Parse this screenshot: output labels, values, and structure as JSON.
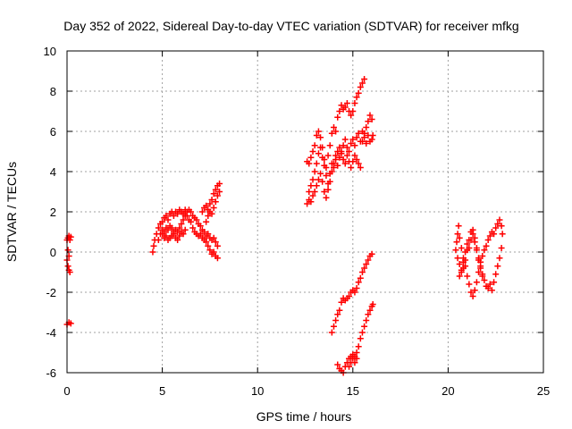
{
  "chart_data": {
    "type": "scatter",
    "title": "Day 352 of 2022, Sidereal Day-to-day VTEC variation (SDTVAR) for receiver mfkg",
    "xlabel": "GPS time / hours",
    "ylabel": "SDTVAR / TECUs",
    "xlim": [
      0,
      25
    ],
    "ylim": [
      -6,
      10
    ],
    "x_ticks": [
      0,
      5,
      10,
      15,
      20,
      25
    ],
    "y_ticks": [
      -6,
      -4,
      -2,
      0,
      2,
      4,
      6,
      8,
      10
    ],
    "grid": true,
    "marker": "plus",
    "color": "#ff0000",
    "segments": [
      [
        [
          0.0,
          0.6
        ],
        [
          0.05,
          0.7
        ],
        [
          0.1,
          0.8
        ],
        [
          0.15,
          0.6
        ],
        [
          0.2,
          0.75
        ]
      ],
      [
        [
          0.0,
          -0.4
        ],
        [
          0.05,
          -0.7
        ],
        [
          0.1,
          -0.9
        ],
        [
          0.15,
          -1.0
        ],
        [
          0.1,
          -0.2
        ],
        [
          0.05,
          0.1
        ]
      ],
      [
        [
          0.0,
          -3.6
        ],
        [
          0.1,
          -3.5
        ],
        [
          0.2,
          -3.55
        ]
      ],
      [
        [
          4.5,
          0.0
        ],
        [
          4.55,
          0.3
        ],
        [
          4.6,
          0.6
        ],
        [
          4.7,
          0.9
        ],
        [
          4.8,
          1.2
        ],
        [
          4.9,
          1.4
        ],
        [
          5.0,
          1.5
        ],
        [
          5.1,
          1.7
        ],
        [
          5.2,
          1.8
        ],
        [
          5.3,
          1.6
        ],
        [
          5.4,
          1.9
        ],
        [
          5.5,
          2.0
        ],
        [
          5.6,
          1.8
        ],
        [
          5.7,
          2.0
        ],
        [
          5.8,
          1.9
        ],
        [
          5.9,
          2.1
        ],
        [
          6.0,
          2.0
        ],
        [
          6.1,
          1.9
        ],
        [
          6.2,
          2.1
        ],
        [
          6.3,
          1.8
        ],
        [
          6.4,
          1.6
        ],
        [
          6.5,
          1.5
        ],
        [
          6.6,
          1.2
        ],
        [
          6.7,
          1.0
        ],
        [
          6.8,
          0.9
        ],
        [
          6.9,
          0.8
        ],
        [
          7.0,
          0.9
        ],
        [
          7.1,
          0.7
        ],
        [
          7.2,
          0.6
        ],
        [
          7.3,
          0.5
        ],
        [
          7.4,
          0.3
        ],
        [
          7.5,
          0.1
        ],
        [
          7.6,
          -0.1
        ],
        [
          7.7,
          0.0
        ],
        [
          7.8,
          -0.2
        ],
        [
          7.9,
          -0.3
        ]
      ],
      [
        [
          4.8,
          0.6
        ],
        [
          4.9,
          0.9
        ],
        [
          5.0,
          1.1
        ],
        [
          5.1,
          1.0
        ],
        [
          5.2,
          1.2
        ],
        [
          5.3,
          1.1
        ],
        [
          5.4,
          1.3
        ],
        [
          5.5,
          1.2
        ],
        [
          5.6,
          1.0
        ],
        [
          5.7,
          1.1
        ],
        [
          5.8,
          1.0
        ],
        [
          5.9,
          1.2
        ],
        [
          6.0,
          1.4
        ],
        [
          6.1,
          1.6
        ],
        [
          6.2,
          1.8
        ],
        [
          6.3,
          2.0
        ],
        [
          6.4,
          2.1
        ],
        [
          6.5,
          2.0
        ],
        [
          6.6,
          1.8
        ],
        [
          6.7,
          1.7
        ],
        [
          6.8,
          1.6
        ],
        [
          6.9,
          1.4
        ],
        [
          7.0,
          1.3
        ],
        [
          7.1,
          1.1
        ],
        [
          7.2,
          1.0
        ],
        [
          7.3,
          0.8
        ],
        [
          7.4,
          0.9
        ],
        [
          7.5,
          0.7
        ],
        [
          7.6,
          0.6
        ],
        [
          7.7,
          0.7
        ],
        [
          7.8,
          0.5
        ],
        [
          7.9,
          0.3
        ]
      ],
      [
        [
          5.0,
          0.9
        ],
        [
          5.1,
          0.7
        ],
        [
          5.2,
          0.8
        ],
        [
          5.3,
          0.6
        ],
        [
          5.4,
          0.7
        ],
        [
          5.5,
          0.8
        ],
        [
          5.6,
          0.9
        ],
        [
          5.7,
          0.7
        ],
        [
          5.8,
          0.6
        ],
        [
          5.9,
          0.8
        ],
        [
          6.0,
          1.0
        ],
        [
          6.1,
          0.9
        ],
        [
          6.2,
          1.1
        ]
      ],
      [
        [
          7.1,
          2.0
        ],
        [
          7.2,
          2.2
        ],
        [
          7.3,
          2.3
        ],
        [
          7.4,
          2.1
        ],
        [
          7.5,
          2.4
        ],
        [
          7.6,
          2.6
        ],
        [
          7.7,
          2.9
        ],
        [
          7.8,
          3.1
        ],
        [
          7.9,
          3.3
        ],
        [
          8.0,
          3.4
        ]
      ],
      [
        [
          7.3,
          1.5
        ],
        [
          7.4,
          1.8
        ],
        [
          7.5,
          2.0
        ],
        [
          7.6,
          1.9
        ],
        [
          7.7,
          2.2
        ],
        [
          7.8,
          2.5
        ],
        [
          7.9,
          2.8
        ],
        [
          8.0,
          3.0
        ]
      ],
      [
        [
          12.6,
          4.5
        ],
        [
          12.7,
          4.4
        ],
        [
          12.8,
          4.7
        ],
        [
          12.9,
          5.0
        ],
        [
          13.0,
          5.3
        ],
        [
          13.1,
          5.8
        ],
        [
          13.2,
          6.0
        ],
        [
          13.3,
          5.7
        ],
        [
          13.4,
          5.2
        ],
        [
          13.5,
          4.6
        ],
        [
          13.6,
          4.2
        ],
        [
          13.7,
          4.8
        ],
        [
          13.8,
          5.3
        ],
        [
          13.9,
          5.9
        ],
        [
          14.0,
          6.2
        ],
        [
          14.1,
          6.0
        ],
        [
          14.2,
          6.7
        ],
        [
          14.3,
          7.0
        ],
        [
          14.4,
          7.3
        ],
        [
          14.5,
          7.1
        ],
        [
          14.6,
          7.2
        ],
        [
          14.7,
          7.4
        ],
        [
          14.8,
          7.0
        ],
        [
          14.9,
          6.8
        ],
        [
          15.0,
          7.0
        ],
        [
          15.1,
          7.4
        ],
        [
          15.2,
          7.7
        ],
        [
          15.3,
          7.9
        ],
        [
          15.4,
          8.2
        ],
        [
          15.5,
          8.4
        ],
        [
          15.6,
          8.6
        ]
      ],
      [
        [
          12.6,
          2.4
        ],
        [
          12.7,
          2.6
        ],
        [
          12.8,
          2.5
        ],
        [
          12.9,
          2.8
        ],
        [
          13.0,
          3.0
        ],
        [
          13.1,
          3.3
        ],
        [
          13.2,
          3.6
        ],
        [
          13.3,
          3.9
        ],
        [
          13.4,
          3.5
        ],
        [
          13.5,
          3.0
        ],
        [
          13.6,
          2.7
        ],
        [
          13.7,
          3.1
        ],
        [
          13.8,
          3.5
        ],
        [
          13.9,
          4.0
        ],
        [
          14.0,
          4.4
        ],
        [
          14.1,
          4.8
        ],
        [
          14.2,
          5.0
        ],
        [
          14.3,
          5.2
        ],
        [
          14.4,
          4.9
        ],
        [
          14.5,
          5.3
        ],
        [
          14.6,
          5.6
        ],
        [
          14.7,
          5.2
        ],
        [
          14.8,
          5.0
        ],
        [
          14.9,
          5.4
        ],
        [
          15.0,
          5.6
        ],
        [
          15.1,
          5.3
        ],
        [
          15.2,
          5.7
        ],
        [
          15.3,
          5.9
        ],
        [
          15.4,
          5.5
        ],
        [
          15.5,
          6.0
        ],
        [
          15.6,
          5.7
        ],
        [
          15.7,
          5.4
        ],
        [
          15.8,
          5.8
        ],
        [
          15.9,
          5.5
        ],
        [
          16.0,
          5.6
        ]
      ],
      [
        [
          12.7,
          3.0
        ],
        [
          12.8,
          3.3
        ],
        [
          12.9,
          3.6
        ],
        [
          13.0,
          4.0
        ],
        [
          13.1,
          4.4
        ],
        [
          13.2,
          4.9
        ],
        [
          13.3,
          5.2
        ],
        [
          13.4,
          4.7
        ],
        [
          13.5,
          4.3
        ],
        [
          13.6,
          3.8
        ],
        [
          13.7,
          3.4
        ],
        [
          13.8,
          3.9
        ],
        [
          13.9,
          4.4
        ],
        [
          14.0,
          4.2
        ],
        [
          14.1,
          4.6
        ],
        [
          14.2,
          4.3
        ],
        [
          14.3,
          4.7
        ],
        [
          14.4,
          5.0
        ],
        [
          14.5,
          4.6
        ],
        [
          14.6,
          4.4
        ],
        [
          14.7,
          4.8
        ],
        [
          14.8,
          4.5
        ],
        [
          14.9,
          4.2
        ],
        [
          15.0,
          4.5
        ],
        [
          15.1,
          4.8
        ],
        [
          15.2,
          4.6
        ],
        [
          15.3,
          4.4
        ],
        [
          15.4,
          4.2
        ]
      ],
      [
        [
          15.5,
          5.5
        ],
        [
          15.6,
          5.9
        ],
        [
          15.7,
          6.2
        ],
        [
          15.8,
          6.5
        ],
        [
          15.9,
          6.8
        ],
        [
          16.0,
          6.6
        ],
        [
          16.05,
          5.8
        ]
      ],
      [
        [
          13.9,
          -4.0
        ],
        [
          14.0,
          -3.7
        ],
        [
          14.1,
          -3.4
        ],
        [
          14.2,
          -3.1
        ],
        [
          14.3,
          -2.9
        ],
        [
          14.4,
          -2.5
        ],
        [
          14.5,
          -2.3
        ],
        [
          14.6,
          -2.4
        ],
        [
          14.7,
          -2.3
        ],
        [
          14.8,
          -2.2
        ],
        [
          14.9,
          -2.0
        ],
        [
          15.0,
          -1.9
        ],
        [
          15.1,
          -2.0
        ],
        [
          15.2,
          -1.8
        ],
        [
          15.3,
          -1.5
        ],
        [
          15.4,
          -1.3
        ],
        [
          15.5,
          -1.0
        ],
        [
          15.6,
          -0.8
        ],
        [
          15.7,
          -0.6
        ],
        [
          15.8,
          -0.4
        ],
        [
          15.9,
          -0.2
        ],
        [
          16.0,
          -0.1
        ]
      ],
      [
        [
          14.2,
          -5.6
        ],
        [
          14.3,
          -5.8
        ],
        [
          14.4,
          -5.9
        ],
        [
          14.5,
          -6.0
        ],
        [
          14.6,
          -5.7
        ],
        [
          14.7,
          -5.5
        ],
        [
          14.8,
          -5.3
        ],
        [
          14.9,
          -5.2
        ],
        [
          15.0,
          -5.1
        ],
        [
          15.1,
          -5.2
        ],
        [
          15.2,
          -5.0
        ],
        [
          15.3,
          -4.7
        ],
        [
          15.4,
          -4.3
        ],
        [
          15.5,
          -4.0
        ],
        [
          15.6,
          -3.7
        ],
        [
          15.7,
          -3.4
        ],
        [
          15.8,
          -3.1
        ],
        [
          15.9,
          -2.9
        ],
        [
          16.0,
          -2.7
        ],
        [
          16.05,
          -2.6
        ]
      ],
      [
        [
          14.8,
          -5.7
        ],
        [
          14.9,
          -5.5
        ],
        [
          15.0,
          -5.3
        ],
        [
          15.1,
          -5.5
        ],
        [
          15.2,
          -5.3
        ]
      ],
      [
        [
          20.4,
          0.1
        ],
        [
          20.45,
          0.5
        ],
        [
          20.5,
          0.9
        ],
        [
          20.55,
          1.3
        ],
        [
          20.6,
          0.7
        ],
        [
          20.7,
          0.2
        ],
        [
          20.8,
          -0.3
        ],
        [
          20.9,
          -0.7
        ],
        [
          21.0,
          -1.2
        ],
        [
          21.1,
          -1.6
        ],
        [
          21.2,
          -2.0
        ],
        [
          21.3,
          -2.2
        ],
        [
          21.4,
          -1.9
        ],
        [
          21.5,
          -1.5
        ],
        [
          21.6,
          -1.0
        ],
        [
          21.7,
          -0.5
        ],
        [
          21.8,
          -0.2
        ],
        [
          21.9,
          0.1
        ],
        [
          22.0,
          0.3
        ],
        [
          22.1,
          0.6
        ],
        [
          22.2,
          0.8
        ],
        [
          22.3,
          1.0
        ],
        [
          22.4,
          0.9
        ],
        [
          22.5,
          1.2
        ],
        [
          22.6,
          1.4
        ],
        [
          22.7,
          1.6
        ],
        [
          22.8,
          1.3
        ],
        [
          22.85,
          0.9
        ]
      ],
      [
        [
          20.5,
          -0.3
        ],
        [
          20.6,
          -0.6
        ],
        [
          20.7,
          -1.0
        ],
        [
          20.8,
          -0.8
        ],
        [
          20.9,
          -0.4
        ],
        [
          21.0,
          0.1
        ],
        [
          21.1,
          0.6
        ],
        [
          21.2,
          1.0
        ],
        [
          21.3,
          1.1
        ],
        [
          21.4,
          0.7
        ],
        [
          21.5,
          0.2
        ],
        [
          21.6,
          -0.3
        ],
        [
          21.7,
          -0.7
        ],
        [
          21.8,
          -1.1
        ],
        [
          21.9,
          -1.4
        ],
        [
          22.0,
          -1.7
        ],
        [
          22.1,
          -1.8
        ],
        [
          22.2,
          -1.6
        ],
        [
          22.3,
          -1.9
        ],
        [
          22.4,
          -1.5
        ],
        [
          22.5,
          -1.1
        ],
        [
          22.6,
          -0.7
        ],
        [
          22.7,
          -0.3
        ],
        [
          22.8,
          0.2
        ]
      ],
      [
        [
          20.6,
          -1.2
        ],
        [
          20.7,
          -0.9
        ],
        [
          20.8,
          -0.5
        ],
        [
          20.9,
          0.0
        ],
        [
          21.0,
          0.4
        ],
        [
          21.1,
          0.2
        ],
        [
          21.2,
          0.6
        ],
        [
          21.3,
          0.9
        ],
        [
          21.4,
          0.5
        ],
        [
          21.5,
          0.1
        ],
        [
          21.6,
          -0.4
        ],
        [
          21.7,
          -0.8
        ],
        [
          21.8,
          -1.2
        ]
      ]
    ]
  }
}
